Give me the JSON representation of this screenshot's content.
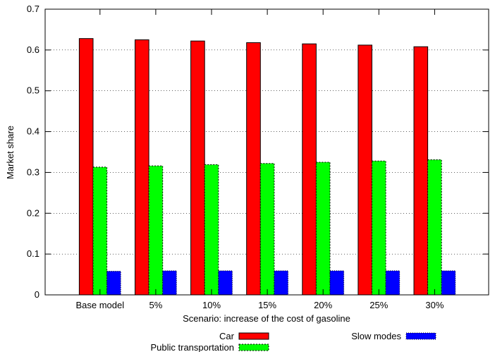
{
  "chart_data": {
    "type": "bar",
    "title": "",
    "xlabel": "Scenario: increase of the cost of gasoline",
    "ylabel": "Market share",
    "ylim": [
      0,
      0.7
    ],
    "yticks": [
      "0",
      "0.1",
      "0.2",
      "0.3",
      "0.4",
      "0.5",
      "0.6",
      "0.7"
    ],
    "categories": [
      "Base model",
      "5%",
      "10%",
      "15%",
      "20%",
      "25%",
      "30%"
    ],
    "grid": "horizontal dotted",
    "legend_position": "bottom",
    "series": [
      {
        "name": "Car",
        "color": "#ff0000",
        "pattern": "solid",
        "values": [
          0.628,
          0.625,
          0.622,
          0.618,
          0.615,
          0.612,
          0.608
        ]
      },
      {
        "name": "Public transportation",
        "color": "#00ff00",
        "pattern": "dashed",
        "values": [
          0.313,
          0.316,
          0.319,
          0.322,
          0.325,
          0.328,
          0.331
        ]
      },
      {
        "name": "Slow modes",
        "color": "#0000ff",
        "pattern": "dotted",
        "values": [
          0.058,
          0.059,
          0.059,
          0.059,
          0.059,
          0.059,
          0.059
        ]
      }
    ]
  }
}
